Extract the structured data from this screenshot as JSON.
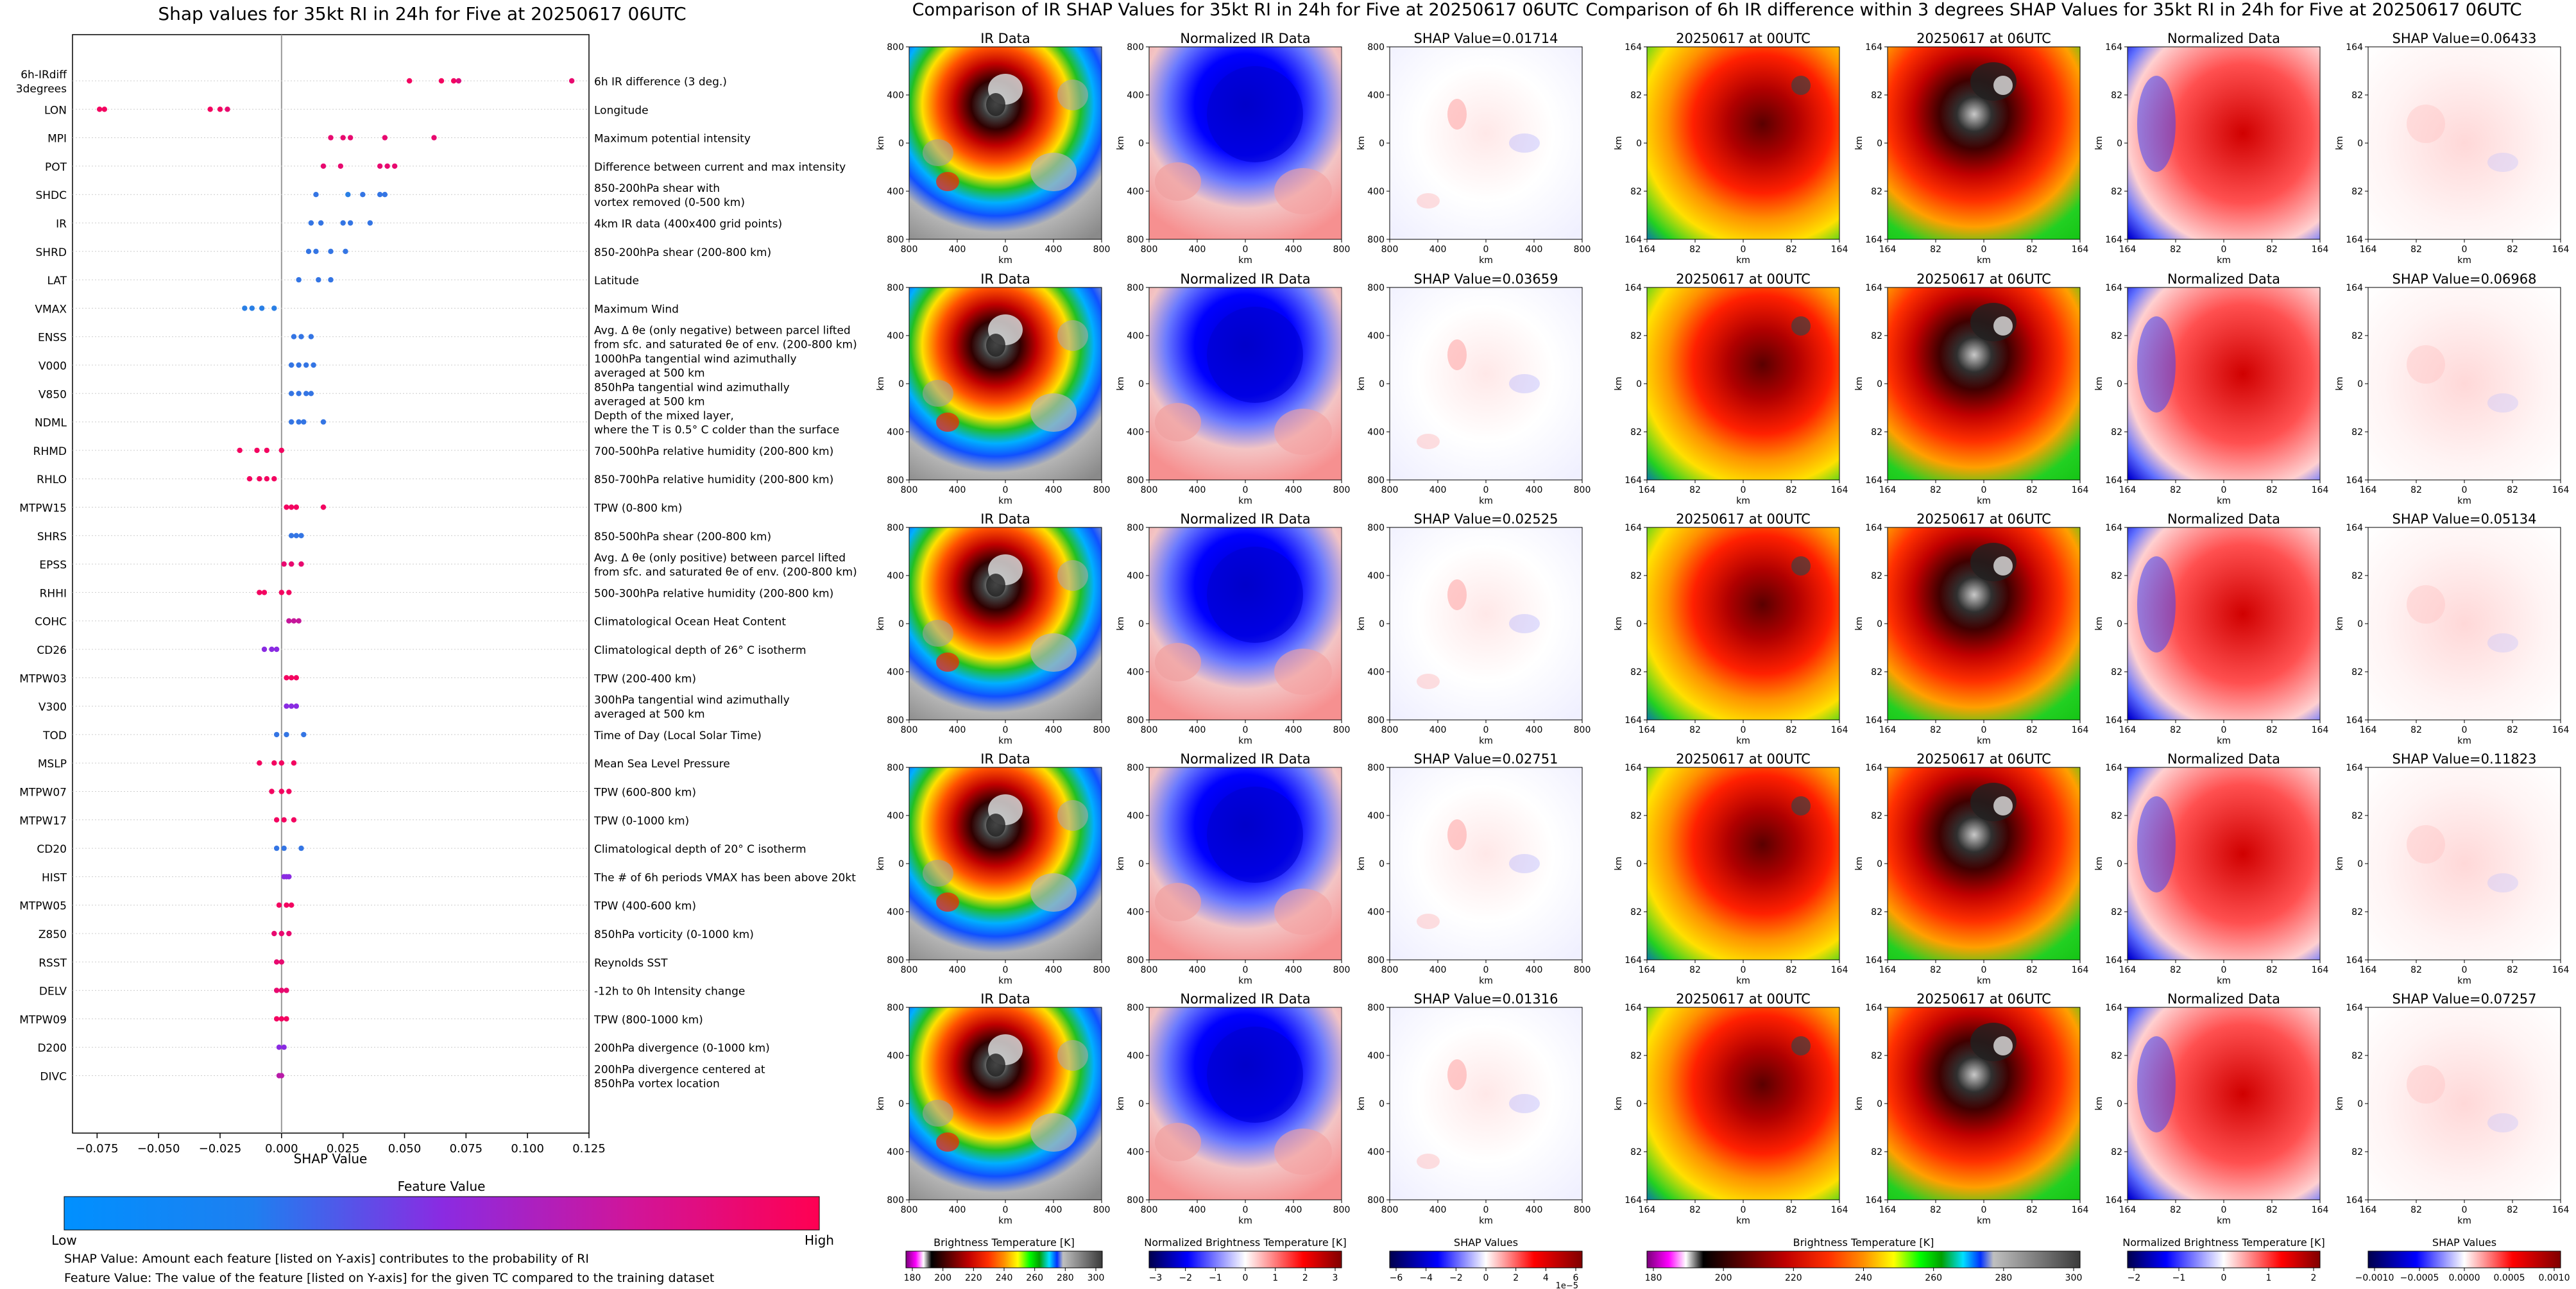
{
  "summary": {
    "title": "Shap values for 35kt RI in 24h for Five at 20250617 06UTC",
    "xlabel": "SHAP Value",
    "colorbar_title": "Feature Value",
    "colorbar_low": "Low",
    "colorbar_high": "High",
    "note1": "SHAP Value: Amount each feature [listed on Y-axis] contributes to the probability of RI",
    "note2": "Feature Value: The value of the feature [listed on Y-axis] for the given TC compared to the training dataset"
  },
  "ir_section": {
    "title": "Comparison of IR SHAP Values for 35kt RI in 24h for Five at 20250617 06UTC",
    "col_titles": [
      "IR Data",
      "Normalized IR Data"
    ],
    "shap_prefix": "SHAP Value=",
    "shap_values": [
      "0.01714",
      "0.03659",
      "0.02525",
      "0.02751",
      "0.01316"
    ],
    "axis_label": "km",
    "x_ticks": [
      "800",
      "400",
      "0",
      "400",
      "800"
    ],
    "y_ticks": [
      "800",
      "400",
      "0",
      "400",
      "800"
    ],
    "cb1_label": "Brightness Temperature [K]",
    "cb1_ticks": [
      "180",
      "200",
      "220",
      "240",
      "260",
      "280",
      "300"
    ],
    "cb2_label": "Normalized Brightness Temperature [K]",
    "cb2_ticks": [
      "−3",
      "−2",
      "−1",
      "0",
      "1",
      "2",
      "3"
    ],
    "cb3_label": "SHAP Values",
    "cb3_ticks": [
      "−6",
      "−4",
      "−2",
      "0",
      "2",
      "4",
      "6"
    ],
    "cb3_exp": "1e−5"
  },
  "diff_section": {
    "title": "Comparison of 6h IR difference within 3 degrees SHAP Values for 35kt RI in 24h for Five at 20250617 06UTC",
    "col_titles": [
      "20250617 at 00UTC",
      "20250617 at 06UTC",
      "Normalized Data"
    ],
    "shap_prefix": "SHAP Value=",
    "shap_values": [
      "0.06433",
      "0.06968",
      "0.05134",
      "0.11823",
      "0.07257"
    ],
    "axis_label": "km",
    "x_ticks": [
      "164",
      "82",
      "0",
      "82",
      "164"
    ],
    "y_ticks": [
      "164",
      "82",
      "0",
      "82",
      "164"
    ],
    "cb1_label": "Brightness Temperature [K]",
    "cb1_ticks": [
      "180",
      "200",
      "220",
      "240",
      "260",
      "280",
      "300"
    ],
    "cb2_label": "Normalized Brightness Temperature [K]",
    "cb2_ticks": [
      "−2",
      "−1",
      "0",
      "1",
      "2"
    ],
    "cb3_label": "SHAP Values",
    "cb3_ticks": [
      "−0.0010",
      "−0.0005",
      "0.0000",
      "0.0005",
      "0.0010"
    ]
  },
  "colors": {
    "low": "#1e88e5",
    "mid": "#8a2be2",
    "high": "#ff0052"
  },
  "chart_data": {
    "type": "scatter",
    "title": "Shap values for 35kt RI in 24h for Five at 20250617 06UTC",
    "xlabel": "SHAP Value",
    "xlim": [
      -0.085,
      0.125
    ],
    "xticks": [
      -0.075,
      -0.05,
      -0.025,
      0.0,
      0.025,
      0.05,
      0.075,
      0.1,
      0.125
    ],
    "xtick_labels": [
      "−0.075",
      "−0.050",
      "−0.025",
      "0.000",
      "0.025",
      "0.050",
      "0.075",
      "0.100",
      "0.125"
    ],
    "features": [
      {
        "name": "6h-IRdiff\n3degrees",
        "desc": "6h IR difference (3 deg.)",
        "points": [
          [
            0.052,
            0.95
          ],
          [
            0.065,
            0.95
          ],
          [
            0.07,
            0.95
          ],
          [
            0.072,
            0.85
          ],
          [
            0.118,
            0.9
          ]
        ]
      },
      {
        "name": "LON",
        "desc": "Longitude",
        "points": [
          [
            -0.074,
            0.95
          ],
          [
            -0.072,
            0.95
          ],
          [
            -0.029,
            0.95
          ],
          [
            -0.025,
            0.95
          ],
          [
            -0.022,
            0.9
          ]
        ]
      },
      {
        "name": "MPI",
        "desc": "Maximum potential intensity",
        "points": [
          [
            0.02,
            0.9
          ],
          [
            0.025,
            0.9
          ],
          [
            0.028,
            0.9
          ],
          [
            0.042,
            0.9
          ],
          [
            0.062,
            0.9
          ]
        ]
      },
      {
        "name": "POT",
        "desc": "Difference between current and max intensity",
        "points": [
          [
            0.017,
            0.9
          ],
          [
            0.024,
            0.9
          ],
          [
            0.04,
            0.9
          ],
          [
            0.043,
            0.9
          ],
          [
            0.046,
            0.9
          ]
        ]
      },
      {
        "name": "SHDC",
        "desc": "850-200hPa shear with\nvortex removed (0-500 km)",
        "points": [
          [
            0.014,
            0.1
          ],
          [
            0.027,
            0.05
          ],
          [
            0.033,
            0.1
          ],
          [
            0.04,
            0.1
          ],
          [
            0.042,
            0.1
          ]
        ]
      },
      {
        "name": "IR",
        "desc": "4km IR data (400x400 grid points)",
        "points": [
          [
            0.012,
            0.1
          ],
          [
            0.016,
            0.1
          ],
          [
            0.025,
            0.1
          ],
          [
            0.028,
            0.1
          ],
          [
            0.036,
            0.1
          ]
        ]
      },
      {
        "name": "SHRD",
        "desc": "850-200hPa shear (200-800 km)",
        "points": [
          [
            0.011,
            0.1
          ],
          [
            0.014,
            0.1
          ],
          [
            0.02,
            0.1
          ],
          [
            0.026,
            0.1
          ]
        ]
      },
      {
        "name": "LAT",
        "desc": "Latitude",
        "points": [
          [
            0.007,
            0.1
          ],
          [
            0.015,
            0.1
          ],
          [
            0.02,
            0.1
          ]
        ]
      },
      {
        "name": "VMAX",
        "desc": "Maximum Wind",
        "points": [
          [
            -0.015,
            0.05
          ],
          [
            -0.012,
            0.05
          ],
          [
            -0.008,
            0.05
          ],
          [
            -0.003,
            0.05
          ]
        ]
      },
      {
        "name": "ENSS",
        "desc": "Avg. Δ θe (only negative) between parcel lifted\nfrom sfc. and saturated θe of env. (200-800 km)",
        "points": [
          [
            0.005,
            0.1
          ],
          [
            0.008,
            0.1
          ],
          [
            0.012,
            0.1
          ]
        ]
      },
      {
        "name": "V000",
        "desc": "1000hPa tangential wind azimuthally\naveraged at 500 km",
        "points": [
          [
            0.004,
            0.1
          ],
          [
            0.007,
            0.1
          ],
          [
            0.01,
            0.1
          ],
          [
            0.013,
            0.1
          ]
        ]
      },
      {
        "name": "V850",
        "desc": "850hPa tangential wind azimuthally\naveraged at 500 km",
        "points": [
          [
            0.004,
            0.1
          ],
          [
            0.007,
            0.1
          ],
          [
            0.01,
            0.1
          ],
          [
            0.012,
            0.1
          ]
        ]
      },
      {
        "name": "NDML",
        "desc": "Depth of the mixed layer,\nwhere the T is 0.5° C colder than the surface",
        "points": [
          [
            0.004,
            0.1
          ],
          [
            0.007,
            0.1
          ],
          [
            0.009,
            0.1
          ],
          [
            0.017,
            0.1
          ]
        ]
      },
      {
        "name": "RHMD",
        "desc": "700-500hPa relative humidity (200-800 km)",
        "points": [
          [
            -0.017,
            0.95
          ],
          [
            -0.01,
            0.95
          ],
          [
            -0.006,
            0.95
          ],
          [
            0.0,
            0.95
          ]
        ]
      },
      {
        "name": "RHLO",
        "desc": "850-700hPa relative humidity (200-800 km)",
        "points": [
          [
            -0.013,
            0.95
          ],
          [
            -0.009,
            0.95
          ],
          [
            -0.006,
            0.95
          ],
          [
            -0.003,
            0.95
          ]
        ]
      },
      {
        "name": "MTPW15",
        "desc": "TPW (0-800 km)",
        "points": [
          [
            0.002,
            0.95
          ],
          [
            0.004,
            0.95
          ],
          [
            0.006,
            0.95
          ],
          [
            0.017,
            0.95
          ]
        ]
      },
      {
        "name": "SHRS",
        "desc": "850-500hPa shear (200-800 km)",
        "points": [
          [
            0.004,
            0.1
          ],
          [
            0.006,
            0.1
          ],
          [
            0.008,
            0.1
          ]
        ]
      },
      {
        "name": "EPSS",
        "desc": "Avg. Δ θe (only positive) between parcel lifted\nfrom sfc. and saturated θe of env. (200-800 km)",
        "points": [
          [
            0.001,
            0.9
          ],
          [
            0.004,
            0.9
          ],
          [
            0.008,
            0.9
          ]
        ]
      },
      {
        "name": "RHHI",
        "desc": "500-300hPa relative humidity (200-800 km)",
        "points": [
          [
            -0.009,
            0.95
          ],
          [
            -0.007,
            0.95
          ],
          [
            0.0,
            0.95
          ],
          [
            0.003,
            0.95
          ]
        ]
      },
      {
        "name": "COHC",
        "desc": "Climatological Ocean Heat Content",
        "points": [
          [
            0.003,
            0.75
          ],
          [
            0.005,
            0.75
          ],
          [
            0.007,
            0.75
          ]
        ]
      },
      {
        "name": "CD26",
        "desc": "Climatological depth of 26° C isotherm",
        "points": [
          [
            -0.007,
            0.5
          ],
          [
            -0.004,
            0.5
          ],
          [
            -0.002,
            0.5
          ]
        ]
      },
      {
        "name": "MTPW03",
        "desc": "TPW (200-400 km)",
        "points": [
          [
            0.002,
            0.95
          ],
          [
            0.004,
            0.95
          ],
          [
            0.006,
            0.95
          ]
        ]
      },
      {
        "name": "V300",
        "desc": "300hPa tangential wind azimuthally\naveraged at 500 km",
        "points": [
          [
            0.002,
            0.5
          ],
          [
            0.004,
            0.5
          ],
          [
            0.006,
            0.5
          ]
        ]
      },
      {
        "name": "TOD",
        "desc": "Time of Day (Local Solar Time)",
        "points": [
          [
            -0.002,
            0.1
          ],
          [
            0.002,
            0.1
          ],
          [
            0.009,
            0.1
          ]
        ]
      },
      {
        "name": "MSLP",
        "desc": "Mean Sea Level Pressure",
        "points": [
          [
            -0.009,
            0.95
          ],
          [
            -0.003,
            0.95
          ],
          [
            0.0,
            0.95
          ],
          [
            0.005,
            0.95
          ]
        ]
      },
      {
        "name": "MTPW07",
        "desc": "TPW (600-800 km)",
        "points": [
          [
            -0.004,
            0.95
          ],
          [
            0.0,
            0.95
          ],
          [
            0.003,
            0.95
          ]
        ]
      },
      {
        "name": "MTPW17",
        "desc": "TPW (0-1000 km)",
        "points": [
          [
            -0.002,
            0.95
          ],
          [
            0.001,
            0.95
          ],
          [
            0.005,
            0.95
          ]
        ]
      },
      {
        "name": "CD20",
        "desc": "Climatological depth of 20° C isotherm",
        "points": [
          [
            -0.002,
            0.1
          ],
          [
            0.001,
            0.1
          ],
          [
            0.008,
            0.1
          ]
        ]
      },
      {
        "name": "HIST",
        "desc": "The # of 6h periods VMAX has been above 20kt",
        "points": [
          [
            0.001,
            0.5
          ],
          [
            0.002,
            0.5
          ],
          [
            0.003,
            0.5
          ]
        ]
      },
      {
        "name": "MTPW05",
        "desc": "TPW (400-600 km)",
        "points": [
          [
            -0.001,
            0.95
          ],
          [
            0.002,
            0.95
          ],
          [
            0.004,
            0.95
          ]
        ]
      },
      {
        "name": "Z850",
        "desc": "850hPa vorticity (0-1000 km)",
        "points": [
          [
            -0.003,
            0.9
          ],
          [
            0.0,
            0.9
          ],
          [
            0.003,
            0.9
          ]
        ]
      },
      {
        "name": "RSST",
        "desc": "Reynolds SST",
        "points": [
          [
            -0.002,
            0.9
          ],
          [
            0.0,
            0.9
          ]
        ]
      },
      {
        "name": "DELV",
        "desc": "-12h to 0h Intensity change",
        "points": [
          [
            -0.002,
            0.9
          ],
          [
            0.0,
            0.9
          ],
          [
            0.002,
            0.9
          ]
        ]
      },
      {
        "name": "MTPW09",
        "desc": "TPW (800-1000 km)",
        "points": [
          [
            -0.002,
            0.95
          ],
          [
            0.0,
            0.95
          ],
          [
            0.002,
            0.95
          ]
        ]
      },
      {
        "name": "D200",
        "desc": "200hPa divergence (0-1000 km)",
        "points": [
          [
            -0.001,
            0.5
          ],
          [
            0.001,
            0.5
          ]
        ]
      },
      {
        "name": "DIVC",
        "desc": "200hPa divergence centered at\n850hPa vortex location",
        "points": [
          [
            -0.001,
            0.7
          ],
          [
            0.0,
            0.7
          ]
        ]
      }
    ]
  }
}
